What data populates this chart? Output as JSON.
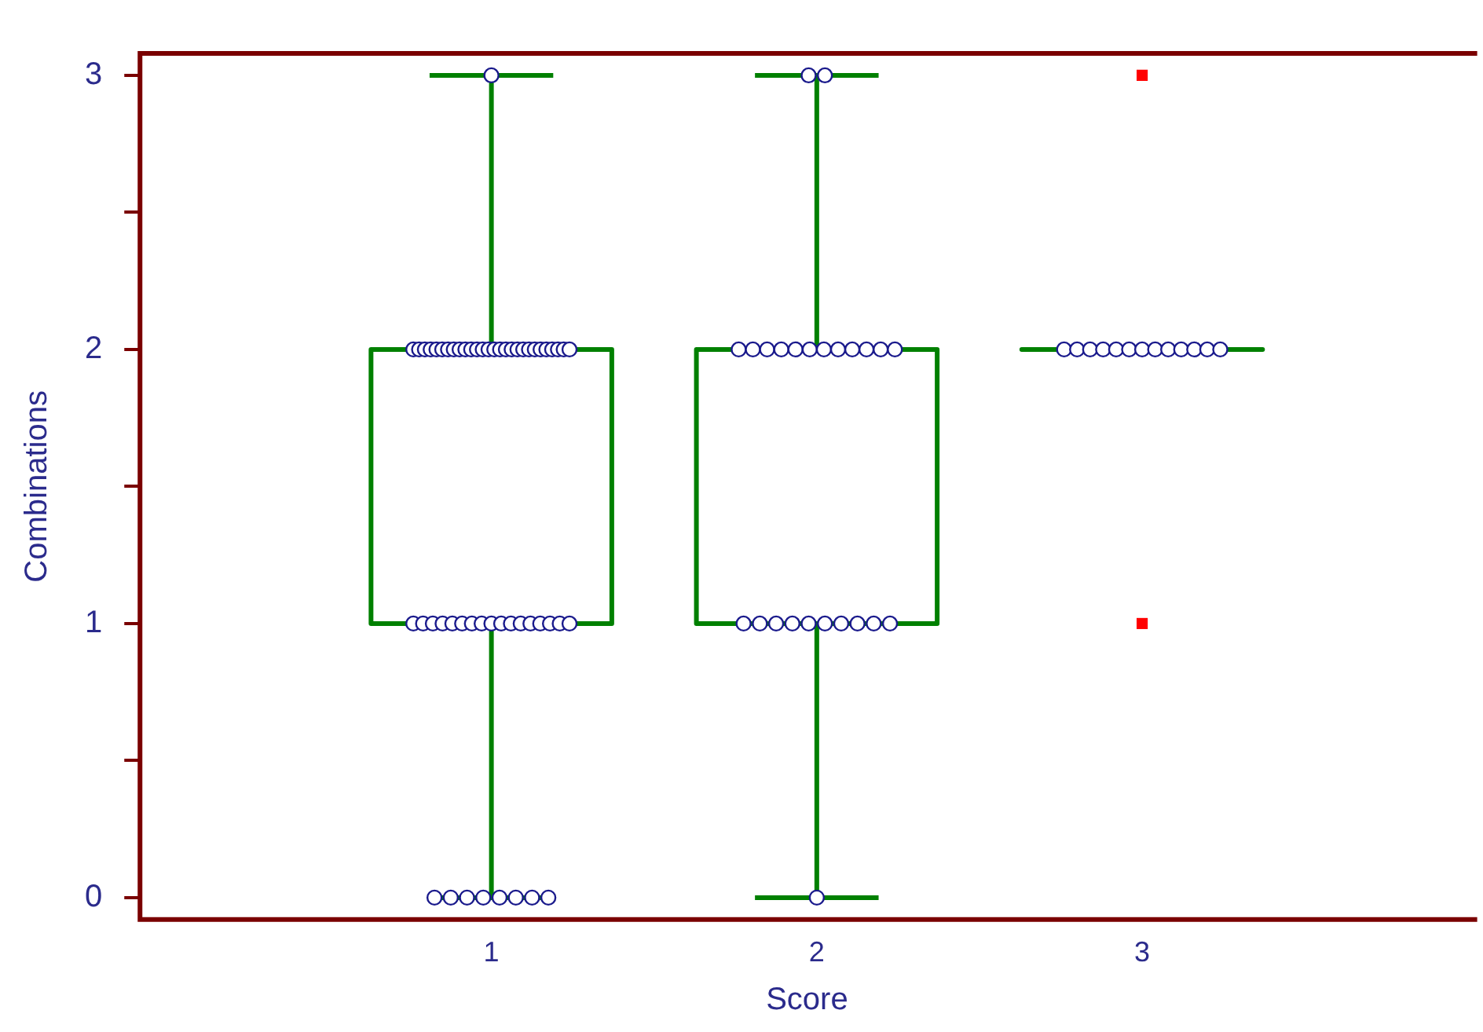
{
  "chart_data": {
    "type": "box",
    "xlabel": "Score",
    "ylabel": "Combinations",
    "categories": [
      "1",
      "2",
      "3"
    ],
    "ylim": [
      -0.08,
      3.08
    ],
    "yticks": [
      0,
      {
        "value": 0.5,
        "label": null
      },
      1,
      {
        "value": 1.5,
        "label": null
      },
      2,
      {
        "value": 2.5,
        "label": null
      },
      3
    ],
    "grid": false,
    "legend": false,
    "marker": "circle",
    "series": [
      {
        "color": "#008000",
        "boxes": [
          {
            "low": 0,
            "q1": 1,
            "median": 2,
            "q3": 2,
            "high": 3
          },
          {
            "low": 0,
            "q1": 1,
            "median": 2,
            "q3": 2,
            "high": 3
          },
          {
            "low": 2,
            "q1": 2,
            "median": 2,
            "q3": 2,
            "high": 2,
            "outliers": [
              1,
              3
            ]
          }
        ]
      },
      {
        "type": "scatter",
        "color": "#1a1a8c",
        "x": [
          "1",
          "1",
          "1",
          "1",
          "1",
          "1",
          "1",
          "1",
          "1",
          "1",
          "1",
          "1",
          "1",
          "1",
          "1",
          "1",
          "1",
          "1",
          "1",
          "1",
          "1",
          "1",
          "1",
          "1",
          "1",
          "1",
          "1",
          "1",
          "1",
          "1",
          "1",
          "1",
          "1",
          "1",
          "1",
          "1",
          "1",
          "1",
          "1",
          "1",
          "1",
          "1",
          "1",
          "1",
          "1",
          "1",
          "1",
          "1",
          "1",
          "1",
          "1",
          "1",
          "1",
          "1",
          "2",
          "2",
          "2",
          "2",
          "2",
          "2",
          "2",
          "2",
          "2",
          "2",
          "2",
          "2",
          "2",
          "2",
          "2",
          "2",
          "2",
          "2",
          "2",
          "2",
          "2",
          "2",
          "2",
          "2",
          "2",
          "3",
          "3",
          "3",
          "3",
          "3",
          "3",
          "3",
          "3",
          "3",
          "3",
          "3",
          "3",
          "3"
        ],
        "values": [
          0,
          0,
          0,
          0,
          0,
          0,
          0,
          0,
          1,
          1,
          1,
          1,
          1,
          1,
          1,
          1,
          1,
          1,
          1,
          1,
          1,
          1,
          1,
          1,
          1,
          2,
          2,
          2,
          2,
          2,
          2,
          2,
          2,
          2,
          2,
          2,
          2,
          2,
          2,
          2,
          2,
          2,
          2,
          2,
          2,
          2,
          2,
          2,
          2,
          2,
          2,
          2,
          2,
          3,
          0,
          1,
          1,
          1,
          1,
          1,
          1,
          1,
          1,
          1,
          1,
          2,
          2,
          2,
          2,
          2,
          2,
          2,
          2,
          2,
          2,
          2,
          2,
          3,
          3,
          2,
          2,
          2,
          2,
          2,
          2,
          2,
          2,
          2,
          2,
          2,
          2,
          2
        ]
      }
    ]
  }
}
